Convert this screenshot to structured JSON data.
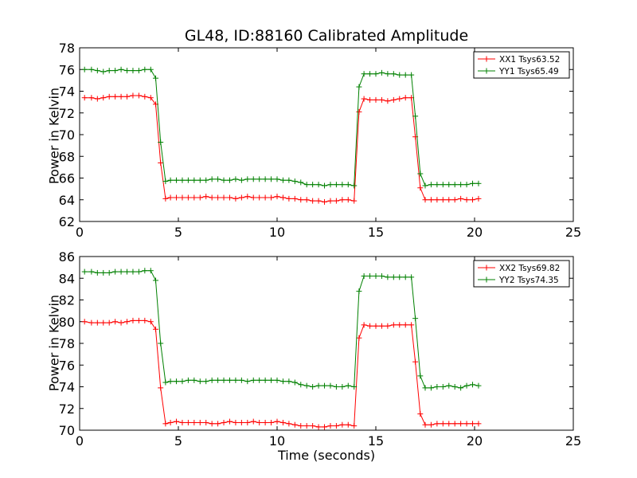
{
  "title": "GL48, ID:88160 Calibrated Amplitude",
  "xlabel": "Time (seconds)",
  "chart_data": [
    {
      "type": "line",
      "ylabel": "Power in Kelvin",
      "xlim": [
        0,
        25
      ],
      "ylim": [
        62,
        78
      ],
      "xticks": [
        0,
        5,
        10,
        15,
        20,
        25
      ],
      "yticks": [
        62,
        64,
        66,
        68,
        70,
        72,
        74,
        76,
        78
      ],
      "grid": false,
      "legend_position": "top-right",
      "x": [
        0.25,
        0.6,
        0.9,
        1.2,
        1.5,
        1.8,
        2.1,
        2.4,
        2.7,
        3.0,
        3.3,
        3.6,
        3.85,
        4.1,
        4.35,
        4.6,
        4.9,
        5.2,
        5.5,
        5.8,
        6.1,
        6.4,
        6.7,
        7.0,
        7.3,
        7.6,
        7.9,
        8.2,
        8.5,
        8.8,
        9.1,
        9.4,
        9.7,
        10.0,
        10.3,
        10.6,
        10.9,
        11.2,
        11.5,
        11.8,
        12.1,
        12.4,
        12.7,
        13.0,
        13.3,
        13.6,
        13.9,
        14.15,
        14.4,
        14.7,
        15.0,
        15.3,
        15.6,
        15.9,
        16.2,
        16.5,
        16.8,
        17.0,
        17.25,
        17.5,
        17.8,
        18.1,
        18.4,
        18.7,
        19.0,
        19.3,
        19.6,
        19.9,
        20.2
      ],
      "series": [
        {
          "name": "XX1 Tsys63.52",
          "color": "#ff0000",
          "values": [
            73.4,
            73.4,
            73.3,
            73.4,
            73.5,
            73.5,
            73.5,
            73.5,
            73.6,
            73.6,
            73.5,
            73.4,
            72.8,
            67.4,
            64.1,
            64.2,
            64.2,
            64.2,
            64.2,
            64.2,
            64.2,
            64.3,
            64.2,
            64.2,
            64.2,
            64.2,
            64.1,
            64.2,
            64.3,
            64.2,
            64.2,
            64.2,
            64.2,
            64.3,
            64.2,
            64.1,
            64.1,
            64.0,
            64.0,
            63.9,
            63.9,
            63.8,
            63.9,
            63.9,
            64.0,
            64.0,
            63.9,
            72.1,
            73.3,
            73.2,
            73.2,
            73.2,
            73.1,
            73.2,
            73.3,
            73.4,
            73.4,
            69.8,
            65.1,
            64.0,
            64.0,
            64.0,
            64.0,
            64.0,
            64.0,
            64.1,
            64.0,
            64.0,
            64.1
          ]
        },
        {
          "name": "YY1 Tsys65.49",
          "color": "#008000",
          "values": [
            76.0,
            76.0,
            75.9,
            75.8,
            75.9,
            75.9,
            76.0,
            75.9,
            75.9,
            75.9,
            76.0,
            76.0,
            75.2,
            69.3,
            65.7,
            65.8,
            65.8,
            65.8,
            65.8,
            65.8,
            65.8,
            65.8,
            65.9,
            65.9,
            65.8,
            65.8,
            65.9,
            65.8,
            65.9,
            65.9,
            65.9,
            65.9,
            65.9,
            65.9,
            65.8,
            65.8,
            65.7,
            65.6,
            65.4,
            65.4,
            65.4,
            65.3,
            65.4,
            65.4,
            65.4,
            65.4,
            65.3,
            74.4,
            75.6,
            75.6,
            75.6,
            75.7,
            75.6,
            75.6,
            75.5,
            75.5,
            75.5,
            71.7,
            66.4,
            65.3,
            65.4,
            65.4,
            65.4,
            65.4,
            65.4,
            65.4,
            65.4,
            65.5,
            65.5
          ]
        }
      ]
    },
    {
      "type": "line",
      "ylabel": "Power in Kelvin",
      "xlim": [
        0,
        25
      ],
      "ylim": [
        70,
        86
      ],
      "xticks": [
        0,
        5,
        10,
        15,
        20,
        25
      ],
      "yticks": [
        70,
        72,
        74,
        76,
        78,
        80,
        82,
        84,
        86
      ],
      "grid": false,
      "legend_position": "top-right",
      "x": [
        0.25,
        0.6,
        0.9,
        1.2,
        1.5,
        1.8,
        2.1,
        2.4,
        2.7,
        3.0,
        3.3,
        3.6,
        3.85,
        4.1,
        4.35,
        4.6,
        4.9,
        5.2,
        5.5,
        5.8,
        6.1,
        6.4,
        6.7,
        7.0,
        7.3,
        7.6,
        7.9,
        8.2,
        8.5,
        8.8,
        9.1,
        9.4,
        9.7,
        10.0,
        10.3,
        10.6,
        10.9,
        11.2,
        11.5,
        11.8,
        12.1,
        12.4,
        12.7,
        13.0,
        13.3,
        13.6,
        13.9,
        14.15,
        14.4,
        14.7,
        15.0,
        15.3,
        15.6,
        15.9,
        16.2,
        16.5,
        16.8,
        17.0,
        17.25,
        17.5,
        17.8,
        18.1,
        18.4,
        18.7,
        19.0,
        19.3,
        19.6,
        19.9,
        20.2
      ],
      "series": [
        {
          "name": "XX2 Tsys69.82",
          "color": "#ff0000",
          "values": [
            80.0,
            79.9,
            79.9,
            79.9,
            79.9,
            80.0,
            79.9,
            80.0,
            80.1,
            80.1,
            80.1,
            80.0,
            79.3,
            73.9,
            70.6,
            70.7,
            70.8,
            70.7,
            70.7,
            70.7,
            70.7,
            70.7,
            70.6,
            70.6,
            70.7,
            70.8,
            70.7,
            70.7,
            70.7,
            70.8,
            70.7,
            70.7,
            70.7,
            70.8,
            70.7,
            70.6,
            70.5,
            70.4,
            70.4,
            70.4,
            70.3,
            70.3,
            70.4,
            70.4,
            70.5,
            70.5,
            70.4,
            78.5,
            79.7,
            79.6,
            79.6,
            79.6,
            79.6,
            79.7,
            79.7,
            79.7,
            79.7,
            76.3,
            71.5,
            70.5,
            70.5,
            70.6,
            70.6,
            70.6,
            70.6,
            70.6,
            70.6,
            70.6,
            70.6
          ]
        },
        {
          "name": "YY2 Tsys74.35",
          "color": "#008000",
          "values": [
            84.6,
            84.6,
            84.5,
            84.5,
            84.5,
            84.6,
            84.6,
            84.6,
            84.6,
            84.6,
            84.7,
            84.7,
            83.8,
            78.0,
            74.4,
            74.5,
            74.5,
            74.5,
            74.6,
            74.6,
            74.5,
            74.5,
            74.6,
            74.6,
            74.6,
            74.6,
            74.6,
            74.6,
            74.5,
            74.6,
            74.6,
            74.6,
            74.6,
            74.6,
            74.5,
            74.5,
            74.4,
            74.2,
            74.1,
            74.0,
            74.1,
            74.1,
            74.1,
            74.0,
            74.0,
            74.1,
            74.0,
            82.8,
            84.2,
            84.2,
            84.2,
            84.2,
            84.1,
            84.1,
            84.1,
            84.1,
            84.1,
            80.3,
            75.0,
            73.9,
            73.9,
            74.0,
            74.0,
            74.1,
            74.0,
            73.9,
            74.1,
            74.2,
            74.1
          ]
        }
      ]
    }
  ]
}
